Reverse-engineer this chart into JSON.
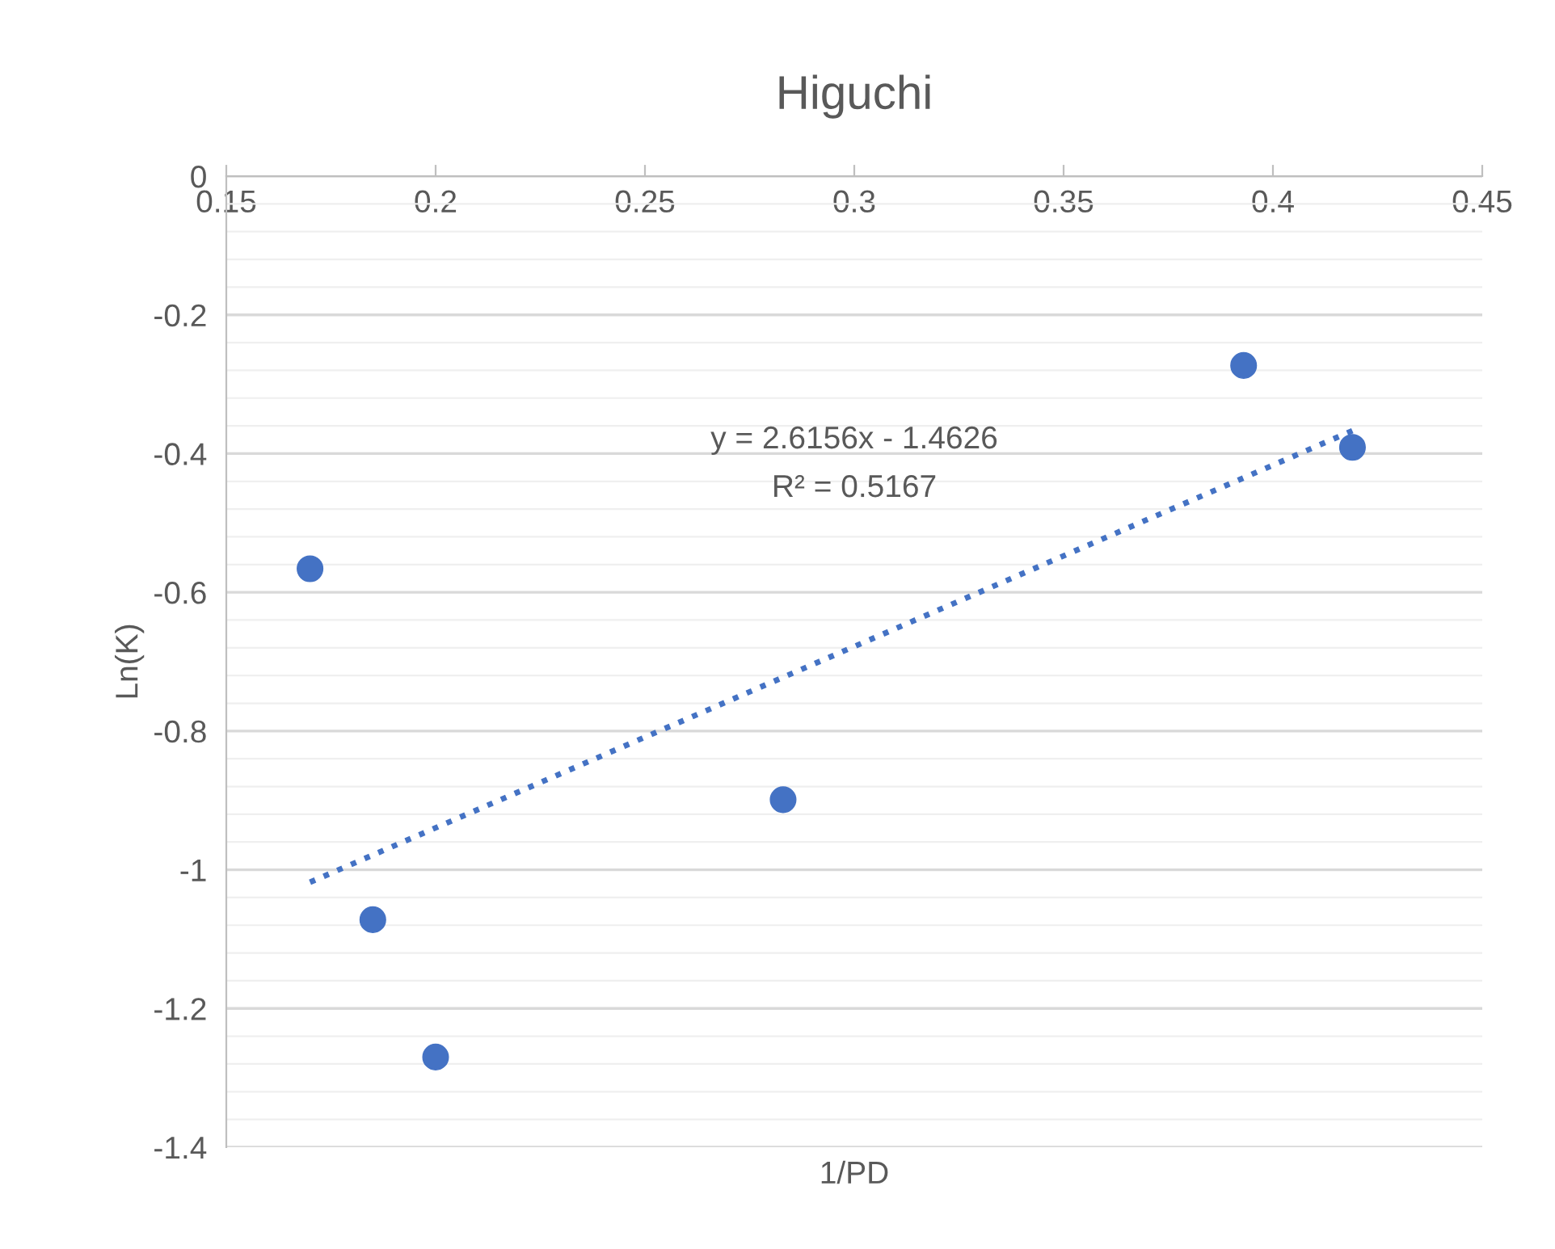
{
  "chart_data": {
    "type": "scatter",
    "title": "Higuchi",
    "xlabel": "1/PD",
    "ylabel": "Ln(K)",
    "xlim": [
      0.15,
      0.45
    ],
    "xticks": [
      0.15,
      0.2,
      0.25,
      0.3,
      0.35,
      0.4,
      0.45
    ],
    "ylim": [
      -1.4,
      0
    ],
    "yticks": [
      -1.4,
      -1.2,
      -1,
      -0.8,
      -0.6,
      -0.4,
      -0.2,
      0
    ],
    "grid": "y",
    "legend": false,
    "series": [
      {
        "marker": "circle",
        "color": "#4472c4",
        "x": [
          0.17,
          0.185,
          0.2,
          0.283,
          0.393,
          0.419
        ],
        "values": [
          -0.566,
          -1.072,
          -1.27,
          -0.899,
          -0.273,
          -0.391
        ]
      },
      {
        "type": "line",
        "marker": "none",
        "color": "#4472c4",
        "line_style": "dotted",
        "x": [
          0.17,
          0.419
        ],
        "values": [
          -1.018,
          -0.367
        ]
      }
    ],
    "annotations": [
      "y = 2.6156x - 1.4626",
      "R² = 0.5167"
    ]
  }
}
